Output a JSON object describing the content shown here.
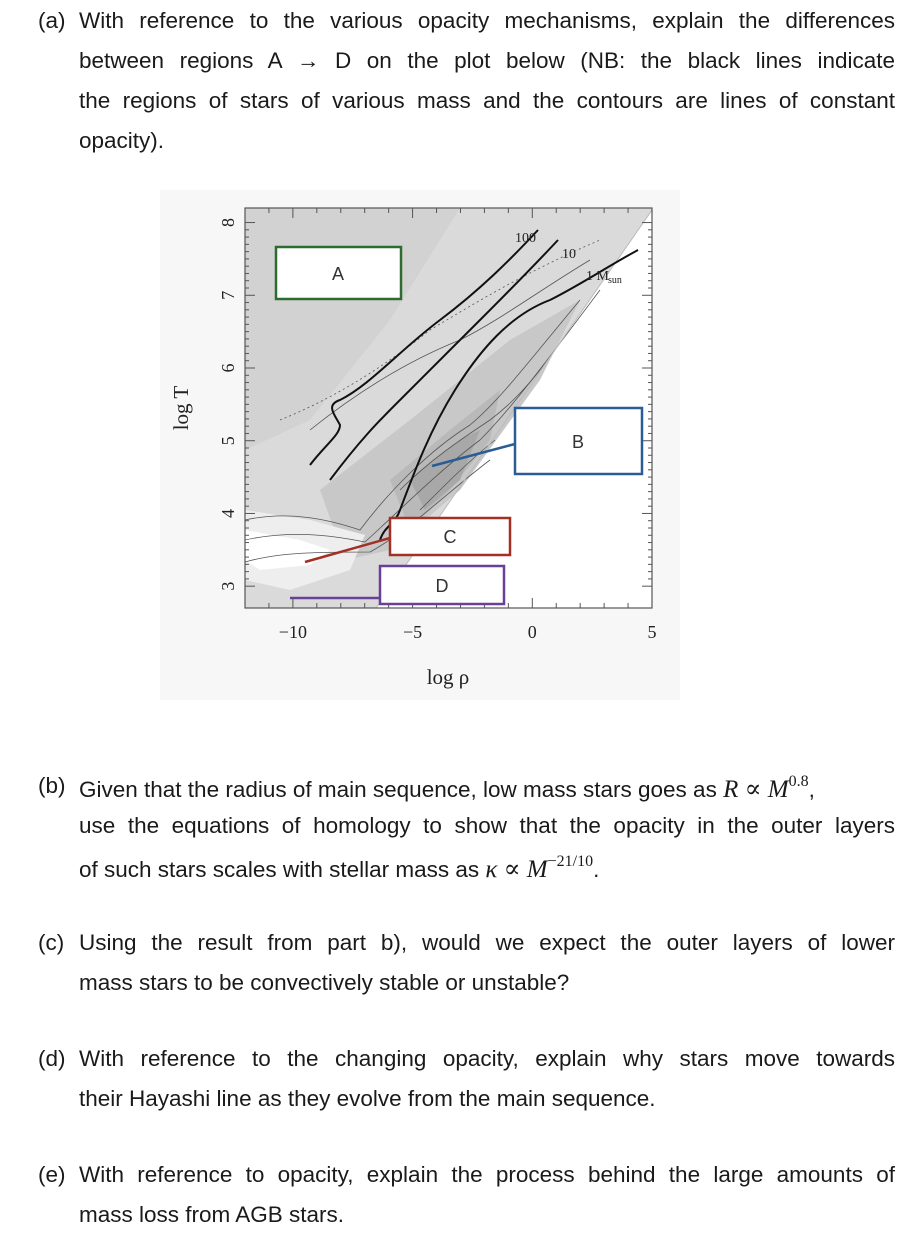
{
  "questions": {
    "a": {
      "label": "(a)",
      "lines": [
        "With reference to the various opacity mechanisms, explain the differences",
        "between regions A → D on the plot below (NB: the black lines indicate",
        "the regions of stars of various mass and the contours are lines of constant",
        "opacity)."
      ]
    },
    "b": {
      "label": "(b)",
      "line1_pre": "Given that the radius of main sequence, low mass stars goes as ",
      "line1_math": "R ∝ M",
      "line1_exp": "0.8",
      "line1_post": ",",
      "line2": "use the equations of homology to show that the opacity in the outer layers",
      "line3_pre": "of such stars scales with stellar mass as ",
      "line3_math": "κ ∝ M",
      "line3_exp": "−21/10",
      "line3_post": "."
    },
    "c": {
      "label": "(c)",
      "lines": [
        "Using the result from part b), would we expect the outer layers of lower",
        "mass stars to be convectively stable or unstable?"
      ]
    },
    "d": {
      "label": "(d)",
      "lines": [
        "With reference to the changing opacity, explain why stars move towards",
        "their Hayashi line as they evolve from the main sequence."
      ]
    },
    "e": {
      "label": "(e)",
      "lines": [
        "With reference to opacity, explain the process behind the large amounts of",
        "mass loss from AGB stars."
      ]
    }
  },
  "figure": {
    "xlabel": "log ρ",
    "ylabel": "log T",
    "x_ticks": [
      "−10",
      "−5",
      "0",
      "5"
    ],
    "y_ticks": [
      "8",
      "7",
      "6",
      "5",
      "4",
      "3"
    ],
    "x_range": [
      -12,
      5
    ],
    "y_range": [
      2.7,
      8.2
    ],
    "mass_labels": [
      "100",
      "10",
      "1 M",
      "sun"
    ],
    "regions": {
      "A": {
        "label": "A",
        "color": "#2e6b2e"
      },
      "B": {
        "label": "B",
        "color": "#2a5d95"
      },
      "C": {
        "label": "C",
        "color": "#a23025"
      },
      "D": {
        "label": "D",
        "color": "#6a3f98"
      }
    }
  }
}
